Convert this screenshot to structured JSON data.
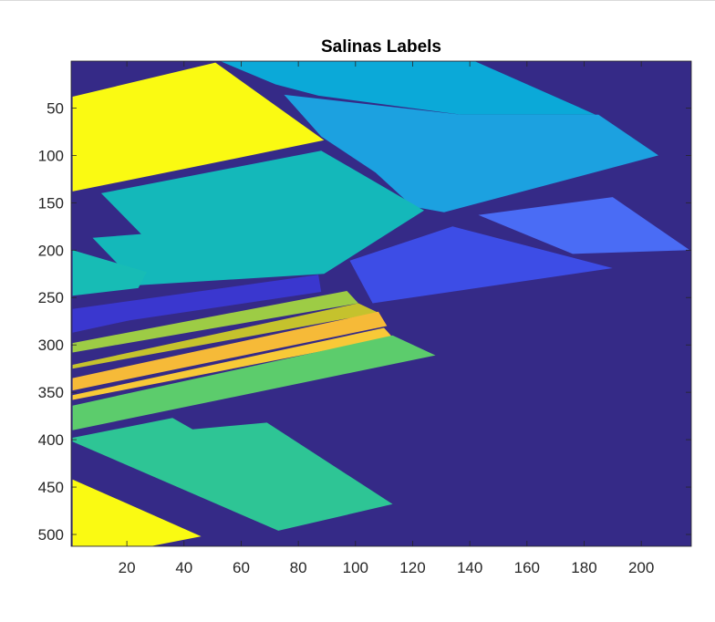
{
  "chart_data": {
    "type": "heatmap",
    "title": "Salinas Labels",
    "xlabel": "",
    "ylabel": "",
    "xlim": [
      0.5,
      217.5
    ],
    "ylim": [
      0.5,
      512.5
    ],
    "y_direction": "reverse",
    "x_ticks": [
      20,
      40,
      60,
      80,
      100,
      120,
      140,
      160,
      180,
      200
    ],
    "y_ticks": [
      50,
      100,
      150,
      200,
      250,
      300,
      350,
      400,
      450,
      500
    ],
    "colormap": "parula",
    "background_label": 0,
    "background_color": "#352a87",
    "regions": [
      {
        "label": 11,
        "color": "#0ba9d8",
        "polygon": [
          [
            53,
            1
          ],
          [
            142,
            1
          ],
          [
            184,
            57
          ],
          [
            137,
            57
          ],
          [
            87,
            37
          ],
          [
            72,
            25
          ]
        ]
      },
      {
        "label": 12,
        "color": "#1ca1e0",
        "polygon": [
          [
            75,
            36
          ],
          [
            137,
            57
          ],
          [
            185,
            57
          ],
          [
            206,
            100
          ],
          [
            131,
            160
          ],
          [
            120,
            154
          ],
          [
            107,
            118
          ],
          [
            88,
            80
          ]
        ]
      },
      {
        "label": 13,
        "color": "#4a6cf5",
        "polygon": [
          [
            143,
            163
          ],
          [
            190,
            144
          ],
          [
            217,
            200
          ],
          [
            176,
            204
          ]
        ]
      },
      {
        "label": 14,
        "color": "#3d4de6",
        "polygon": [
          [
            98,
            211
          ],
          [
            134,
            175
          ],
          [
            190,
            219
          ],
          [
            106,
            256
          ]
        ]
      },
      {
        "label": 1,
        "color": "#fafa12",
        "polygon": [
          [
            1,
            38
          ],
          [
            51,
            2
          ],
          [
            89,
            84
          ],
          [
            47,
            110
          ],
          [
            1,
            138
          ]
        ]
      },
      {
        "label": 2,
        "color": "#fafa12",
        "polygon": [
          [
            1,
            442
          ],
          [
            46,
            502
          ],
          [
            29,
            512
          ],
          [
            1,
            512
          ]
        ]
      },
      {
        "label": 6,
        "color": "#14b8ba",
        "polygon": [
          [
            11,
            140
          ],
          [
            88,
            95
          ],
          [
            124,
            158
          ],
          [
            89,
            225
          ],
          [
            24,
            237
          ],
          [
            8,
            187
          ],
          [
            25,
            183
          ]
        ]
      },
      {
        "label": 7,
        "color": "#17bcb5",
        "polygon": [
          [
            1,
            200
          ],
          [
            27,
            223
          ],
          [
            24,
            240
          ],
          [
            1,
            248
          ]
        ]
      },
      {
        "label": 8,
        "color": "#3a37cf",
        "polygon": [
          [
            1,
            262
          ],
          [
            87,
            226
          ],
          [
            88,
            244
          ],
          [
            21,
            274
          ],
          [
            1,
            287
          ]
        ]
      },
      {
        "label": 9,
        "color": "#9dcc45",
        "polygon": [
          [
            1,
            298
          ],
          [
            97,
            243
          ],
          [
            101,
            256
          ],
          [
            1,
            308
          ]
        ]
      },
      {
        "label": 10,
        "color": "#c5c22d",
        "polygon": [
          [
            1,
            321
          ],
          [
            101,
            256
          ],
          [
            108,
            266
          ],
          [
            1,
            325
          ]
        ]
      },
      {
        "label": 3,
        "color": "#f6ba38",
        "polygon": [
          [
            1,
            335
          ],
          [
            108,
            265
          ],
          [
            111,
            280
          ],
          [
            1,
            348
          ]
        ]
      },
      {
        "label": 4,
        "color": "#f8c937",
        "polygon": [
          [
            1,
            353
          ],
          [
            110,
            282
          ],
          [
            113,
            292
          ],
          [
            1,
            358
          ]
        ]
      },
      {
        "label": 5,
        "color": "#5ccc6c",
        "polygon": [
          [
            1,
            364
          ],
          [
            113,
            290
          ],
          [
            128,
            311
          ],
          [
            1,
            390
          ]
        ]
      },
      {
        "label": 15,
        "color": "#2ec595",
        "polygon": [
          [
            1,
            398
          ],
          [
            36,
            377
          ],
          [
            43,
            389
          ],
          [
            69,
            382
          ],
          [
            113,
            468
          ],
          [
            73,
            496
          ],
          [
            1,
            402
          ]
        ]
      }
    ]
  }
}
